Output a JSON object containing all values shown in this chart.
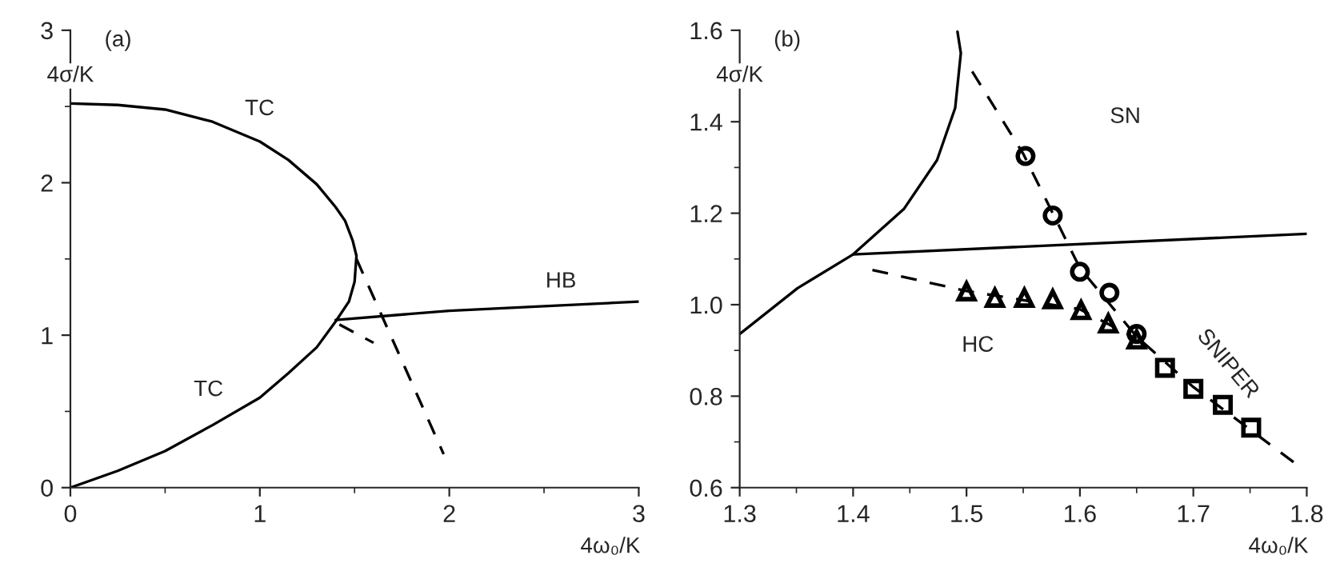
{
  "chart_data": [
    {
      "type": "line",
      "title": "(a)",
      "xlabel": "4ω₀/K",
      "ylabel": "4σ/K",
      "xlim": [
        0,
        3
      ],
      "ylim": [
        0,
        3
      ],
      "xticks": [
        0,
        1,
        2,
        3
      ],
      "yticks": [
        0,
        1,
        2,
        3
      ],
      "grid": false,
      "legend": false,
      "series": [
        {
          "color": "#000000",
          "line_style": "solid",
          "marker": "none",
          "x": [
            0,
            0.25,
            0.5,
            0.75,
            1.0,
            1.15,
            1.3,
            1.4,
            1.45,
            1.49,
            1.51,
            1.5,
            1.47,
            1.4,
            1.3,
            1.15,
            1.0,
            0.75,
            0.5,
            0.25,
            0
          ],
          "values": [
            2.52,
            2.51,
            2.48,
            2.4,
            2.27,
            2.15,
            1.99,
            1.84,
            1.75,
            1.62,
            1.52,
            1.35,
            1.22,
            1.09,
            0.92,
            0.75,
            0.59,
            0.41,
            0.24,
            0.11,
            0
          ]
        },
        {
          "color": "#000000",
          "line_style": "solid",
          "marker": "none",
          "x": [
            1.4,
            2.0,
            2.5,
            3.0
          ],
          "values": [
            1.1,
            1.16,
            1.19,
            1.22
          ]
        },
        {
          "color": "#000000",
          "line_style": "dashed",
          "marker": "none",
          "x": [
            1.51,
            1.97
          ],
          "values": [
            1.5,
            0.22
          ]
        },
        {
          "color": "#000000",
          "line_style": "dashed",
          "marker": "none",
          "x": [
            1.42,
            1.6
          ],
          "values": [
            1.07,
            0.95
          ]
        }
      ],
      "annotations": [
        "TC",
        "TC",
        "HB"
      ]
    },
    {
      "type": "line",
      "title": "(b)",
      "xlabel": "4ω₀/K",
      "ylabel": "4σ/K",
      "xlim": [
        1.3,
        1.8
      ],
      "ylim": [
        0.6,
        1.6
      ],
      "xticks": [
        1.3,
        1.4,
        1.5,
        1.6,
        1.7,
        1.8
      ],
      "yticks": [
        0.6,
        0.8,
        {
          "value": 1,
          "label": "1.0"
        },
        1.2,
        1.4,
        1.6
      ],
      "grid": false,
      "legend": false,
      "series": [
        {
          "color": "#000000",
          "line_style": "solid",
          "marker": "none",
          "x": [
            1.3,
            1.351,
            1.4,
            1.445,
            1.474,
            1.49,
            1.495,
            1.492
          ],
          "values": [
            0.936,
            1.036,
            1.11,
            1.21,
            1.316,
            1.43,
            1.55,
            1.597
          ]
        },
        {
          "color": "#000000",
          "line_style": "solid",
          "marker": "none",
          "x": [
            1.4,
            1.8
          ],
          "values": [
            1.11,
            1.155
          ]
        },
        {
          "color": "#000000",
          "line_style": "dashed",
          "marker": "none",
          "x": [
            1.505,
            1.55,
            1.6,
            1.65,
            1.7,
            1.792
          ],
          "values": [
            1.51,
            1.33,
            1.08,
            0.93,
            0.82,
            0.649
          ]
        },
        {
          "color": "#000000",
          "line_style": "dashed",
          "marker": "none",
          "x": [
            1.417,
            1.5,
            1.6,
            1.65
          ],
          "values": [
            1.076,
            1.03,
            0.99,
            0.925
          ]
        },
        {
          "type": "scatter",
          "color": "#000000",
          "marker": "circle",
          "x": [
            1.552,
            1.576,
            1.6,
            1.626,
            1.65
          ],
          "values": [
            1.325,
            1.195,
            1.072,
            1.026,
            0.936
          ]
        },
        {
          "type": "scatter",
          "color": "#000000",
          "marker": "triangle",
          "x": [
            1.5,
            1.525,
            1.551,
            1.576,
            1.601,
            1.625,
            1.65
          ],
          "values": [
            1.029,
            1.015,
            1.015,
            1.012,
            0.988,
            0.959,
            0.924
          ]
        },
        {
          "type": "scatter",
          "color": "#000000",
          "marker": "square",
          "x": [
            1.675,
            1.7,
            1.726,
            1.751
          ],
          "values": [
            0.862,
            0.816,
            0.781,
            0.731
          ]
        }
      ],
      "annotations": [
        "SN",
        "HC",
        "SNIPER"
      ]
    }
  ]
}
